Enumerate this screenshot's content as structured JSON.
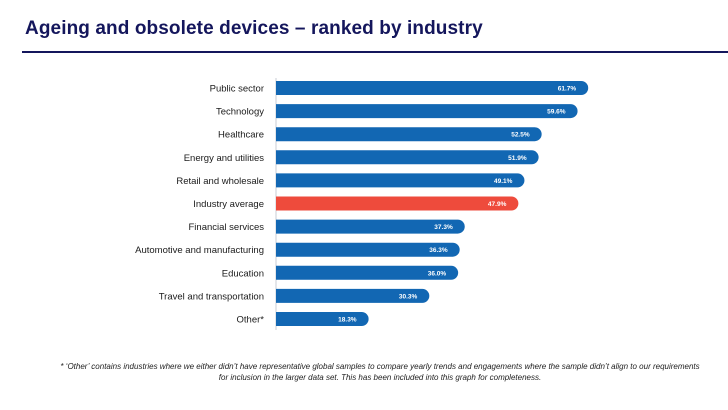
{
  "title": "Ageing and obsolete devices – ranked by industry",
  "footnote": "* ‘Other’ contains industries where we either didn’t have representative global samples to compare yearly trends and engagements where the sample didn’t align to our requirements for inclusion in the larger data set. This has been included into this graph for completeness.",
  "colors": {
    "bar": "#1267b3",
    "highlight": "#ee4b3c",
    "title": "#14165c"
  },
  "chart_data": {
    "type": "bar",
    "orientation": "horizontal",
    "title": "Ageing and obsolete devices – ranked by industry",
    "xlabel": "",
    "ylabel": "",
    "grid": false,
    "value_format": "%",
    "categories": [
      "Public sector",
      "Technology",
      "Healthcare",
      "Energy and utilities",
      "Retail and wholesale",
      "Industry average",
      "Financial services",
      "Automotive and manufacturing",
      "Education",
      "Travel and transportation",
      "Other*"
    ],
    "values": [
      61.7,
      59.6,
      52.5,
      51.9,
      49.1,
      47.9,
      37.3,
      36.3,
      36.0,
      30.3,
      18.3
    ],
    "value_labels": [
      "61.7%",
      "59.6%",
      "52.5%",
      "51.9%",
      "49.1%",
      "47.9%",
      "37.3%",
      "36.3%",
      "36.0%",
      "30.3%",
      "18.3%"
    ],
    "highlight_category": "Industry average"
  }
}
